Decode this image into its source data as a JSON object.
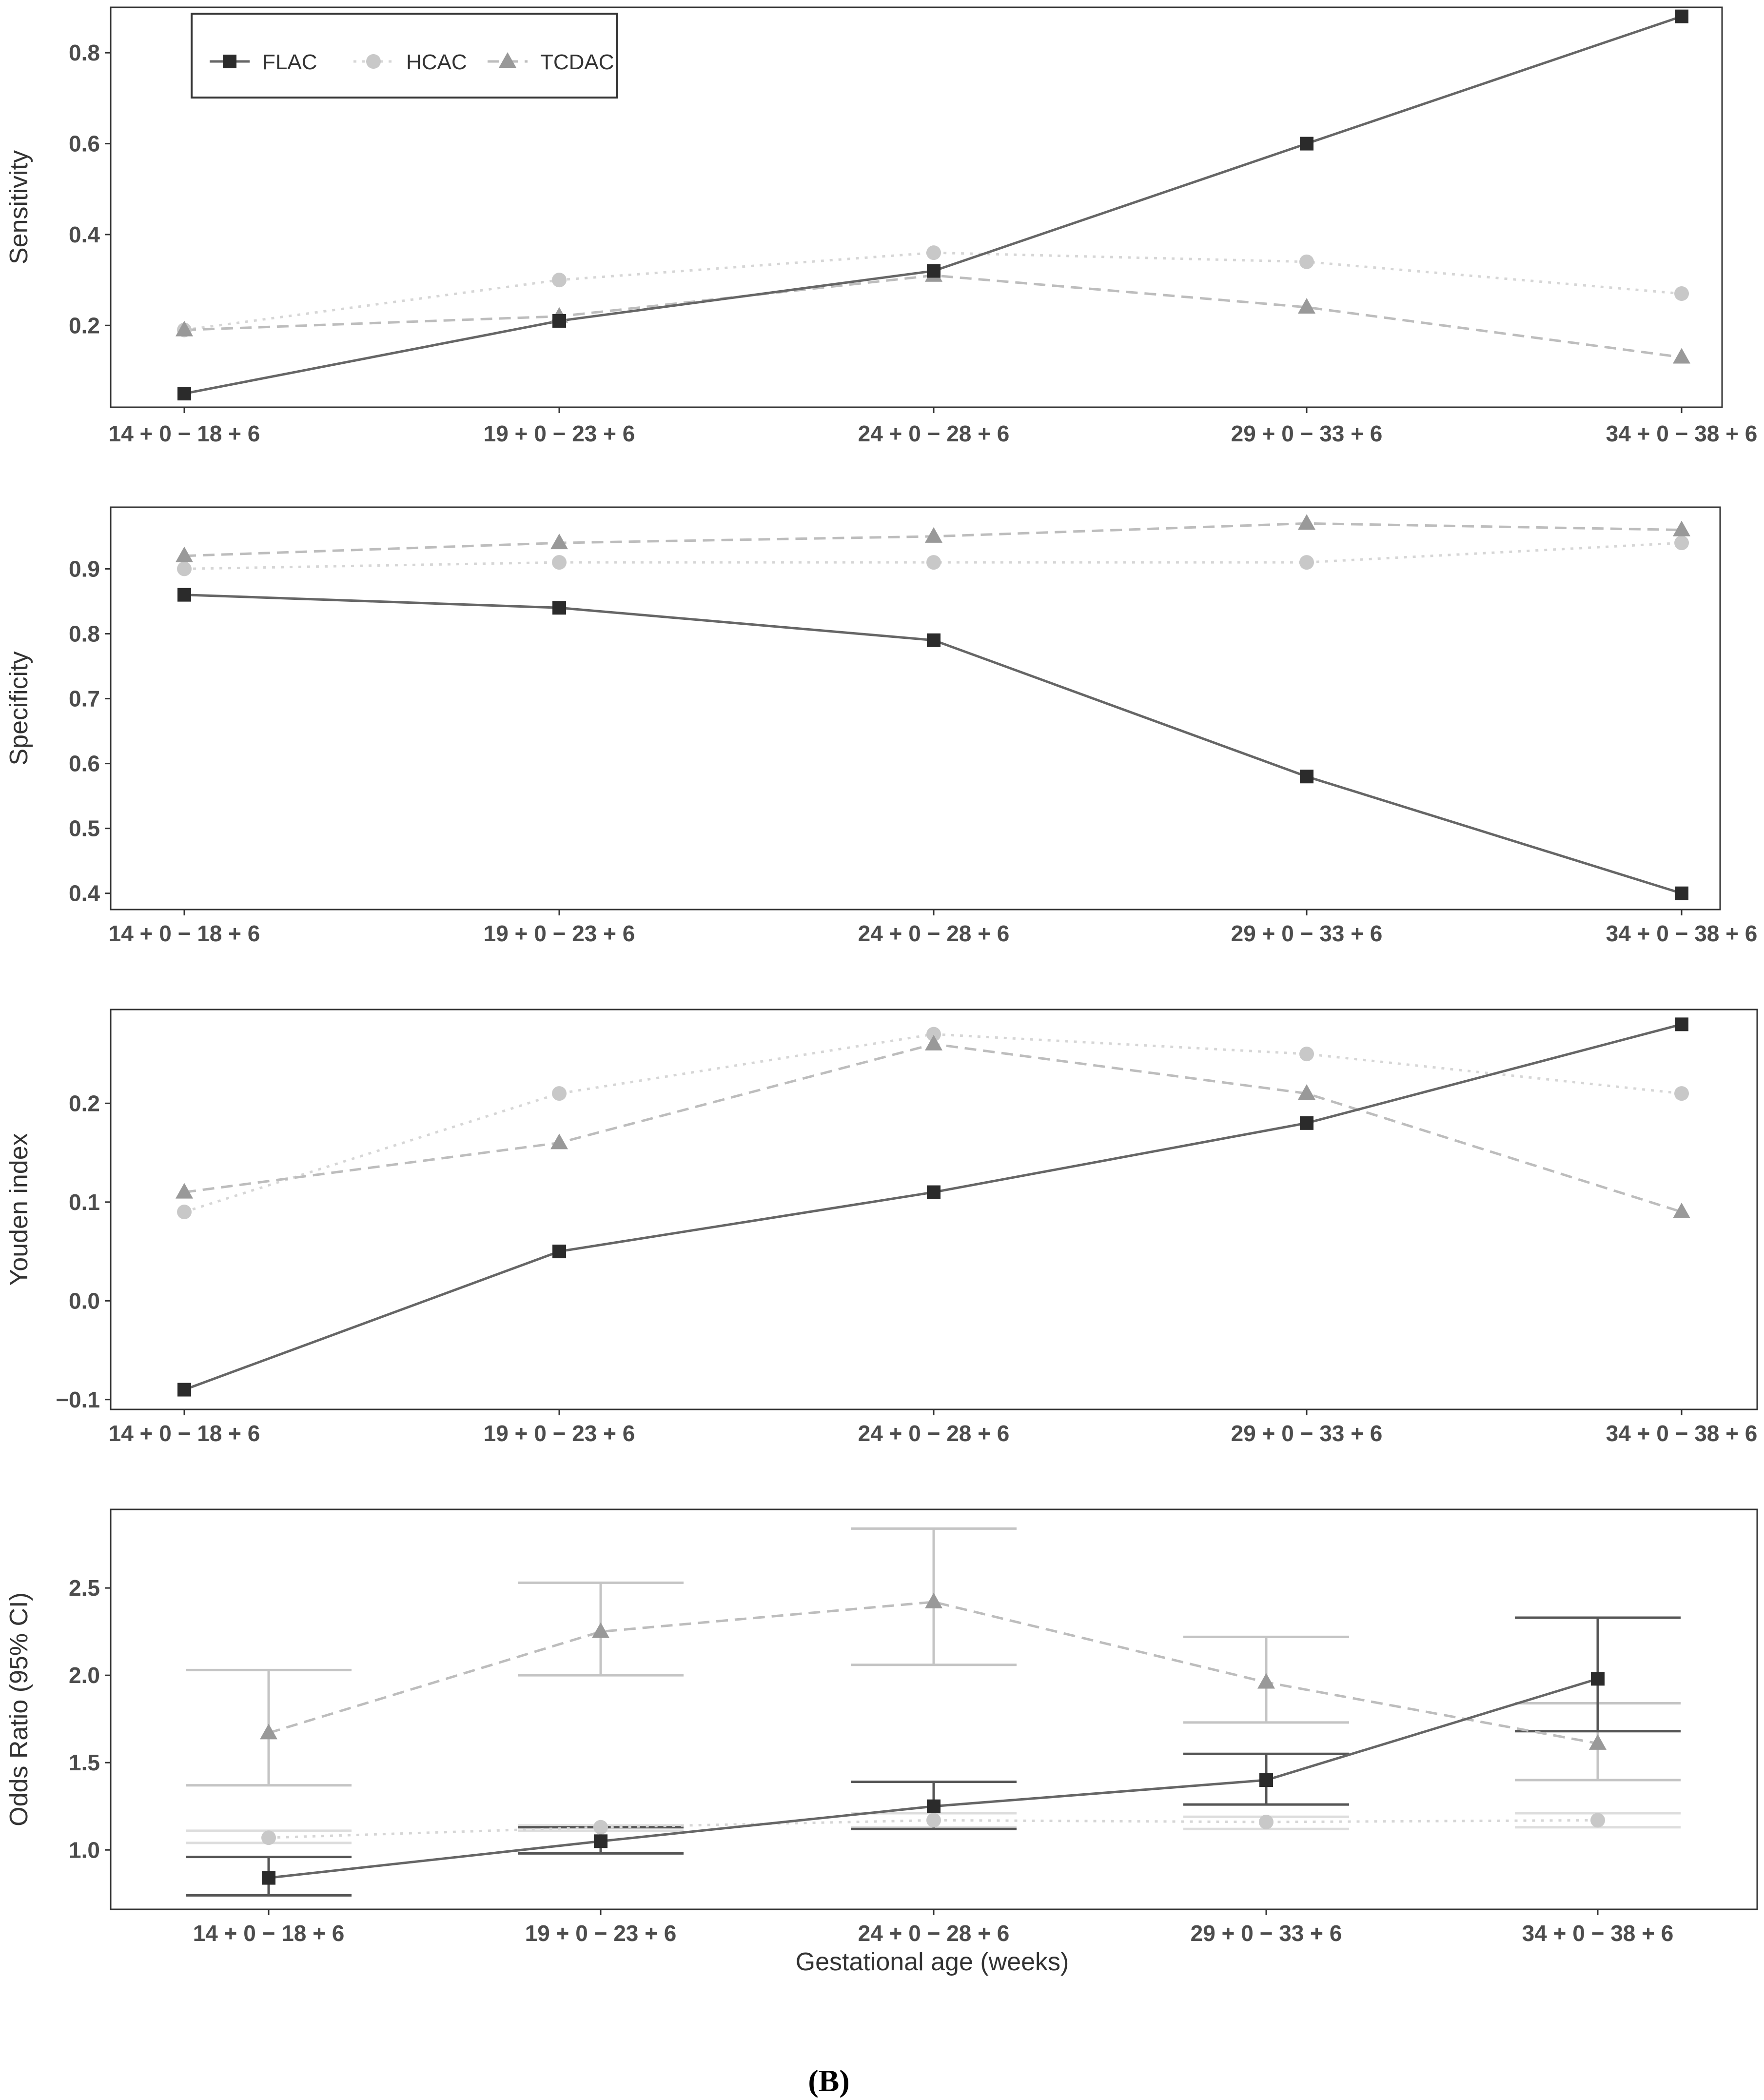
{
  "figure_label": "(B)",
  "x_axis_title": "Gestational age (weeks)",
  "legend": [
    {
      "name": "FLAC",
      "marker": "square",
      "dash": "solid",
      "color": "#666666",
      "marker_color": "#2b2b2b"
    },
    {
      "name": "HCAC",
      "marker": "circle",
      "dash": "dotted",
      "color": "#d6d6d6",
      "marker_color": "#c8c8c8"
    },
    {
      "name": "TCDAC",
      "marker": "triangle",
      "dash": "dashed",
      "color": "#bdbdbd",
      "marker_color": "#999999"
    }
  ],
  "chart_data": [
    {
      "type": "line",
      "ylabel": "Sensitivity",
      "categories": [
        "14 + 0 − 18 + 6",
        "19 + 0 − 23 + 6",
        "24 + 0 − 28 + 6",
        "29 + 0 − 33 + 6",
        "34 + 0 − 38 + 6"
      ],
      "ylim": [
        0.02,
        0.9
      ],
      "yticks": [
        0.2,
        0.4,
        0.6,
        0.8
      ],
      "ytick_labels": [
        "0.2",
        "0.4",
        "0.6",
        "0.8"
      ],
      "series": [
        {
          "name": "FLAC",
          "values": [
            0.05,
            0.21,
            0.32,
            0.6,
            0.88
          ]
        },
        {
          "name": "HCAC",
          "values": [
            0.19,
            0.3,
            0.36,
            0.34,
            0.27
          ]
        },
        {
          "name": "TCDAC",
          "values": [
            0.19,
            0.22,
            0.31,
            0.24,
            0.13
          ]
        }
      ]
    },
    {
      "type": "line",
      "ylabel": "Specificity",
      "categories": [
        "14 + 0 − 18 + 6",
        "19 + 0 − 23 + 6",
        "24 + 0 − 28 + 6",
        "29 + 0 − 33 + 6",
        "34 + 0 − 38 + 6"
      ],
      "ylim": [
        0.375,
        0.995
      ],
      "yticks": [
        0.4,
        0.5,
        0.6,
        0.7,
        0.8,
        0.9
      ],
      "ytick_labels": [
        "0.4",
        "0.5",
        "0.6",
        "0.7",
        "0.8",
        "0.9"
      ],
      "series": [
        {
          "name": "FLAC",
          "values": [
            0.86,
            0.84,
            0.79,
            0.58,
            0.4
          ]
        },
        {
          "name": "HCAC",
          "values": [
            0.9,
            0.91,
            0.91,
            0.91,
            0.94
          ]
        },
        {
          "name": "TCDAC",
          "values": [
            0.92,
            0.94,
            0.95,
            0.97,
            0.96
          ]
        }
      ]
    },
    {
      "type": "line",
      "ylabel": "Youden index",
      "categories": [
        "14 + 0 − 18 + 6",
        "19 + 0 − 23 + 6",
        "24 + 0 − 28 + 6",
        "29 + 0 − 33 + 6",
        "34 + 0 − 38 + 6"
      ],
      "ylim": [
        -0.11,
        0.295
      ],
      "yticks": [
        -0.1,
        0.0,
        0.1,
        0.2
      ],
      "ytick_labels": [
        "−0.1",
        "0.0",
        "0.1",
        "0.2"
      ],
      "series": [
        {
          "name": "FLAC",
          "values": [
            -0.09,
            0.05,
            0.11,
            0.18,
            0.28
          ]
        },
        {
          "name": "HCAC",
          "values": [
            0.09,
            0.21,
            0.27,
            0.25,
            0.21
          ]
        },
        {
          "name": "TCDAC",
          "values": [
            0.11,
            0.16,
            0.26,
            0.21,
            0.09
          ]
        }
      ]
    },
    {
      "type": "line",
      "ylabel": "Odds Ratio (95% CI)",
      "xlabel": "Gestational age (weeks)",
      "categories": [
        "14 + 0 − 18 + 6",
        "19 + 0 − 23 + 6",
        "24 + 0 − 28 + 6",
        "29 + 0 − 33 + 6",
        "34 + 0 − 38 + 6"
      ],
      "ylim": [
        0.66,
        2.95
      ],
      "yticks": [
        1.0,
        1.5,
        2.0,
        2.5
      ],
      "ytick_labels": [
        "1.0",
        "1.5",
        "2.0",
        "2.5"
      ],
      "error_bars": true,
      "series": [
        {
          "name": "FLAC",
          "values": [
            0.84,
            1.05,
            1.25,
            1.4,
            1.98
          ],
          "lower": [
            0.74,
            0.98,
            1.12,
            1.26,
            1.68
          ],
          "upper": [
            0.96,
            1.13,
            1.39,
            1.55,
            2.33
          ]
        },
        {
          "name": "HCAC",
          "values": [
            1.07,
            1.13,
            1.17,
            1.16,
            1.17
          ],
          "lower": [
            1.04,
            1.11,
            1.13,
            1.12,
            1.13
          ],
          "upper": [
            1.11,
            1.14,
            1.21,
            1.19,
            1.21
          ]
        },
        {
          "name": "TCDAC",
          "values": [
            1.67,
            2.25,
            2.42,
            1.96,
            1.61
          ],
          "lower": [
            1.37,
            2.0,
            2.06,
            1.73,
            1.4
          ],
          "upper": [
            2.03,
            2.53,
            2.84,
            2.22,
            1.84
          ]
        }
      ]
    }
  ]
}
